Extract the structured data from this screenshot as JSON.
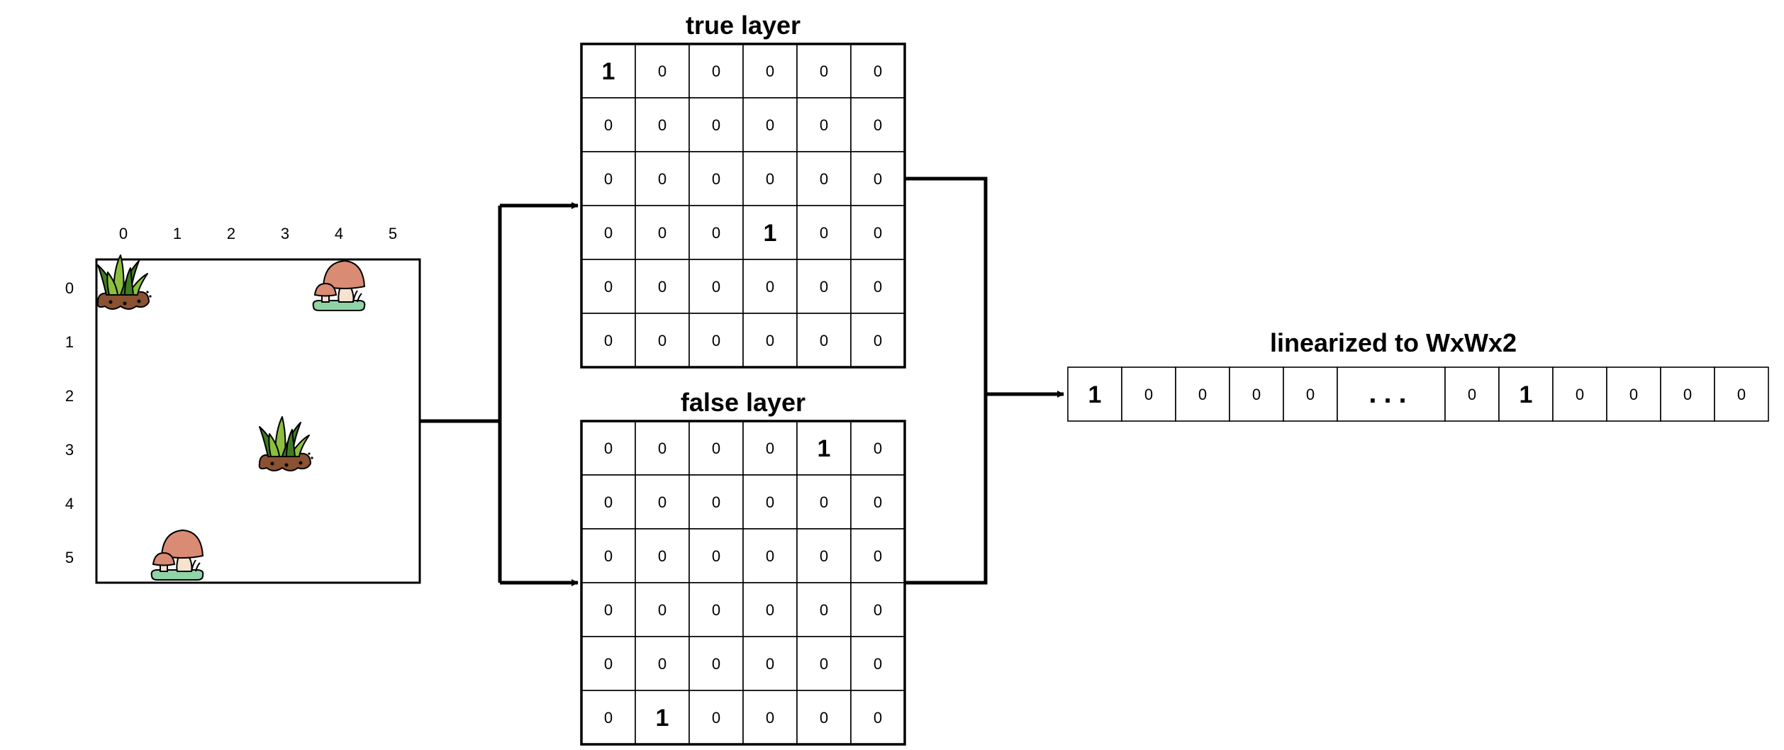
{
  "grid": {
    "col_labels": [
      "0",
      "1",
      "2",
      "3",
      "4",
      "5"
    ],
    "row_labels": [
      "0",
      "1",
      "2",
      "3",
      "4",
      "5"
    ],
    "items": [
      {
        "type": "grass",
        "col": 0,
        "row": 0
      },
      {
        "type": "mushroom",
        "col": 4,
        "row": 0
      },
      {
        "type": "grass",
        "col": 3,
        "row": 3
      },
      {
        "type": "mushroom",
        "col": 1,
        "row": 5
      }
    ]
  },
  "true_layer": {
    "title": "true layer",
    "cells": [
      [
        "1",
        "0",
        "0",
        "0",
        "0",
        "0"
      ],
      [
        "0",
        "0",
        "0",
        "0",
        "0",
        "0"
      ],
      [
        "0",
        "0",
        "0",
        "0",
        "0",
        "0"
      ],
      [
        "0",
        "0",
        "0",
        "1",
        "0",
        "0"
      ],
      [
        "0",
        "0",
        "0",
        "0",
        "0",
        "0"
      ],
      [
        "0",
        "0",
        "0",
        "0",
        "0",
        "0"
      ]
    ]
  },
  "false_layer": {
    "title": "false layer",
    "cells": [
      [
        "0",
        "0",
        "0",
        "0",
        "1",
        "0"
      ],
      [
        "0",
        "0",
        "0",
        "0",
        "0",
        "0"
      ],
      [
        "0",
        "0",
        "0",
        "0",
        "0",
        "0"
      ],
      [
        "0",
        "0",
        "0",
        "0",
        "0",
        "0"
      ],
      [
        "0",
        "0",
        "0",
        "0",
        "0",
        "0"
      ],
      [
        "0",
        "1",
        "0",
        "0",
        "0",
        "0"
      ]
    ]
  },
  "vector": {
    "title": "linearized to WxWx2",
    "cells": [
      "1",
      "0",
      "0",
      "0",
      "0",
      "...",
      "0",
      "1",
      "0",
      "0",
      "0",
      "0"
    ]
  },
  "colors": {
    "line": "#000000",
    "grass_dark": "#3e7d22",
    "grass_light": "#8cbf3f",
    "soil": "#8a5232",
    "mushroom_cap": "#d98b73",
    "mushroom_stem": "#f6e3cf",
    "ground_green": "#8fd3a7"
  }
}
